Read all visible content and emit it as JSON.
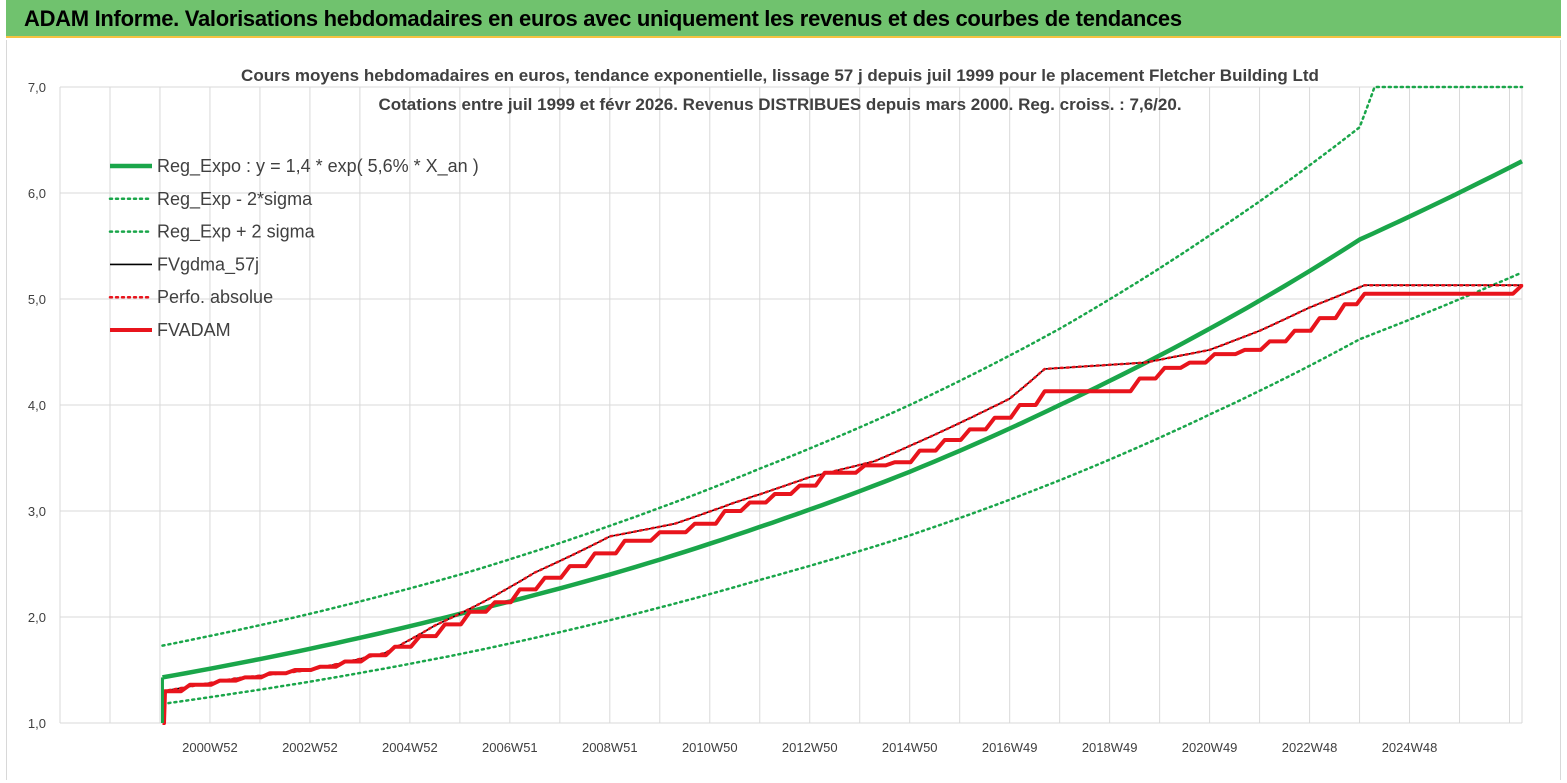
{
  "header": {
    "title": "ADAM Informe. Valorisations hebdomadaires en euros avec uniquement les revenus et des courbes de tendances"
  },
  "chart_data": {
    "type": "line",
    "title": "Cours moyens hebdomadaires en euros, tendance exponentielle, lissage 57 j depuis juil 1999 pour le placement Fletcher Building Ltd",
    "subtitle": "Cotations entre juil 1999 et févr 2026. Revenus DISTRIBUES depuis mars 2000. Reg. croiss. : 7,6/20.",
    "xlabel": "",
    "ylabel": "",
    "ylim": [
      1.0,
      7.0
    ],
    "xlim": [
      1997.5,
      2026.75
    ],
    "yticks": [
      "1,0",
      "2,0",
      "3,0",
      "4,0",
      "5,0",
      "6,0",
      "7,0"
    ],
    "xticks": [
      "2000W52",
      "2002W52",
      "2004W52",
      "2006W51",
      "2008W51",
      "2010W50",
      "2012W50",
      "2014W50",
      "2016W49",
      "2018W49",
      "2020W49",
      "2022W48",
      "2024W48"
    ],
    "xtick_years": [
      2000.5,
      2002.5,
      2004.5,
      2006.5,
      2008.5,
      2010.5,
      2012.5,
      2014.5,
      2016.5,
      2018.5,
      2020.5,
      2022.5,
      2024.5
    ],
    "grid": true,
    "legend_position": "top-left",
    "colors": {
      "green": "#1aa64a",
      "black": "#000000",
      "red": "#e8141c"
    },
    "series": [
      {
        "name": "Reg_Expo : y = 1,4 * exp( 5,6% *  X_an )",
        "style": "solid-thick",
        "color": "#1aa64a",
        "x": [
          1999.55,
          2002.5,
          2005.5,
          2008.5,
          2011.5,
          2014.5,
          2017.5,
          2020.5,
          2023.5,
          2026.75
        ],
        "y": [
          1.43,
          1.7,
          2.03,
          2.4,
          2.85,
          3.37,
          4.0,
          4.72,
          5.56,
          6.3
        ]
      },
      {
        "name": "Reg_Exp - 2*sigma",
        "style": "dotted",
        "color": "#1aa64a",
        "x": [
          1999.55,
          2002.5,
          2005.5,
          2008.5,
          2011.5,
          2014.5,
          2017.5,
          2020.5,
          2023.5,
          2026.75
        ],
        "y": [
          1.18,
          1.39,
          1.65,
          1.97,
          2.35,
          2.77,
          3.29,
          3.91,
          4.62,
          5.25
        ]
      },
      {
        "name": "Reg_Exp + 2 sigma",
        "style": "dotted",
        "color": "#1aa64a",
        "x": [
          1999.55,
          2002.5,
          2005.5,
          2008.5,
          2011.5,
          2014.5,
          2017.5,
          2020.5,
          2023.5,
          2023.8,
          2026.75
        ],
        "y": [
          1.73,
          2.03,
          2.4,
          2.86,
          3.4,
          4.0,
          4.72,
          5.6,
          6.62,
          7.0,
          7.0
        ]
      },
      {
        "name": "FVgdma_57j",
        "style": "solid",
        "color": "#000000",
        "x": [
          1999.55,
          2001.0,
          2002.5,
          2004.0,
          2005.0,
          2006.0,
          2007.0,
          2008.5,
          2009.8,
          2011.0,
          2012.5,
          2013.8,
          2015.0,
          2016.5,
          2017.2,
          2019.2,
          2020.5,
          2021.5,
          2022.5,
          2023.6,
          2026.75
        ],
        "y": [
          1.3,
          1.42,
          1.5,
          1.66,
          1.92,
          2.15,
          2.42,
          2.76,
          2.88,
          3.08,
          3.32,
          3.47,
          3.72,
          4.06,
          4.34,
          4.4,
          4.52,
          4.7,
          4.92,
          5.13,
          5.13
        ]
      },
      {
        "name": "Perfo. absolue",
        "style": "dotted",
        "color": "#e8141c",
        "x": [
          1999.55,
          2001.0,
          2002.5,
          2004.0,
          2005.0,
          2006.0,
          2007.0,
          2008.5,
          2009.8,
          2011.0,
          2012.5,
          2013.8,
          2015.0,
          2016.5,
          2017.2,
          2019.2,
          2020.5,
          2021.5,
          2022.5,
          2023.6,
          2026.75
        ],
        "y": [
          1.3,
          1.42,
          1.5,
          1.66,
          1.92,
          2.15,
          2.42,
          2.76,
          2.88,
          3.08,
          3.32,
          3.47,
          3.72,
          4.06,
          4.34,
          4.4,
          4.52,
          4.7,
          4.92,
          5.13,
          5.13
        ]
      },
      {
        "name": "FVADAM",
        "style": "step-thick",
        "color": "#e8141c",
        "x": [
          1999.55,
          1999.6,
          2000.1,
          2000.7,
          2001.2,
          2001.7,
          2002.2,
          2002.7,
          2003.2,
          2003.7,
          2004.2,
          2004.7,
          2005.2,
          2005.7,
          2006.2,
          2006.7,
          2007.2,
          2007.7,
          2008.2,
          2008.8,
          2009.5,
          2010.2,
          2010.8,
          2011.3,
          2011.8,
          2012.3,
          2012.8,
          2013.6,
          2014.2,
          2014.7,
          2015.2,
          2015.7,
          2016.2,
          2016.7,
          2017.2,
          2019.1,
          2019.6,
          2020.1,
          2020.6,
          2021.2,
          2021.7,
          2022.2,
          2022.7,
          2023.2,
          2023.6,
          2026.75
        ],
        "y": [
          1.0,
          1.3,
          1.36,
          1.4,
          1.43,
          1.47,
          1.5,
          1.53,
          1.58,
          1.64,
          1.72,
          1.82,
          1.93,
          2.05,
          2.14,
          2.26,
          2.37,
          2.48,
          2.6,
          2.72,
          2.8,
          2.88,
          3.0,
          3.08,
          3.16,
          3.24,
          3.36,
          3.43,
          3.46,
          3.57,
          3.67,
          3.77,
          3.88,
          4.0,
          4.13,
          4.25,
          4.35,
          4.4,
          4.48,
          4.52,
          4.6,
          4.7,
          4.82,
          4.95,
          5.05,
          5.13
        ]
      }
    ]
  }
}
